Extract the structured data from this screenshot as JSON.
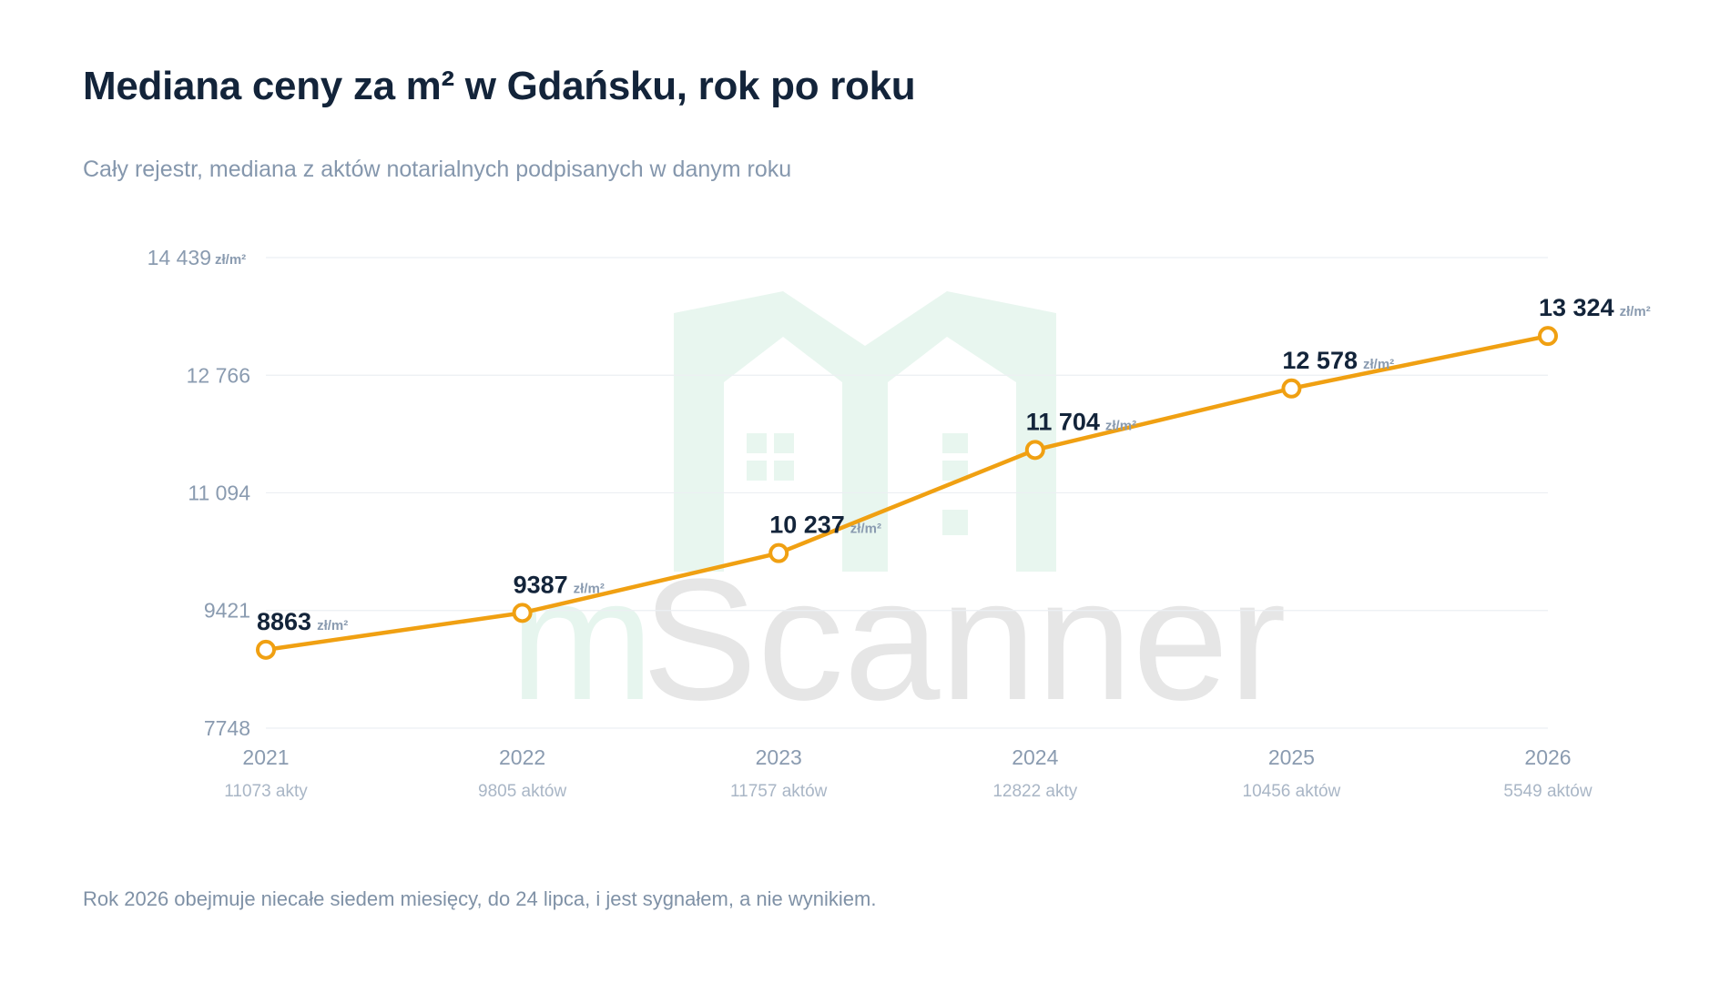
{
  "title": "Mediana ceny za m² w Gdańsku, rok po roku",
  "subtitle": "Cały rejestr, mediana z aktów notarialnych podpisanych w danym roku",
  "footnote": "Rok 2026 obejmuje niecałe siedem miesięcy, do 24 lipca, i jest sygnałem, a nie wynikiem.",
  "watermark": {
    "part1": "m",
    "part2": "Scanner"
  },
  "colors": {
    "line": "#f0a012",
    "title": "#13243a",
    "muted": "#8a9bb0"
  },
  "chart_data": {
    "type": "line",
    "title": "Mediana ceny za m² w Gdańsku, rok po roku",
    "subtitle": "Cały rejestr, mediana z aktów notarialnych podpisanych w danym roku",
    "unit": "zł/m²",
    "categories": [
      "2021",
      "2022",
      "2023",
      "2024",
      "2025",
      "2026"
    ],
    "category_sublabels": [
      "11073 akty",
      "9805 aktów",
      "11757 aktów",
      "12822 akty",
      "10456 aktów",
      "5549 aktów"
    ],
    "values": [
      8863,
      9387,
      10237,
      11704,
      12578,
      13324
    ],
    "value_labels": [
      "8863",
      "9387",
      "10 237",
      "11 704",
      "12 578",
      "13 324"
    ],
    "ylim": [
      7748,
      14439
    ],
    "yticks": [
      7748,
      9421,
      11094,
      12766,
      14439
    ],
    "ytick_labels": [
      "7748",
      "9421",
      "11 094",
      "12 766",
      "14 439"
    ],
    "ytick_unit_on_top": "zł/m²",
    "grid": true,
    "legend": "none"
  }
}
